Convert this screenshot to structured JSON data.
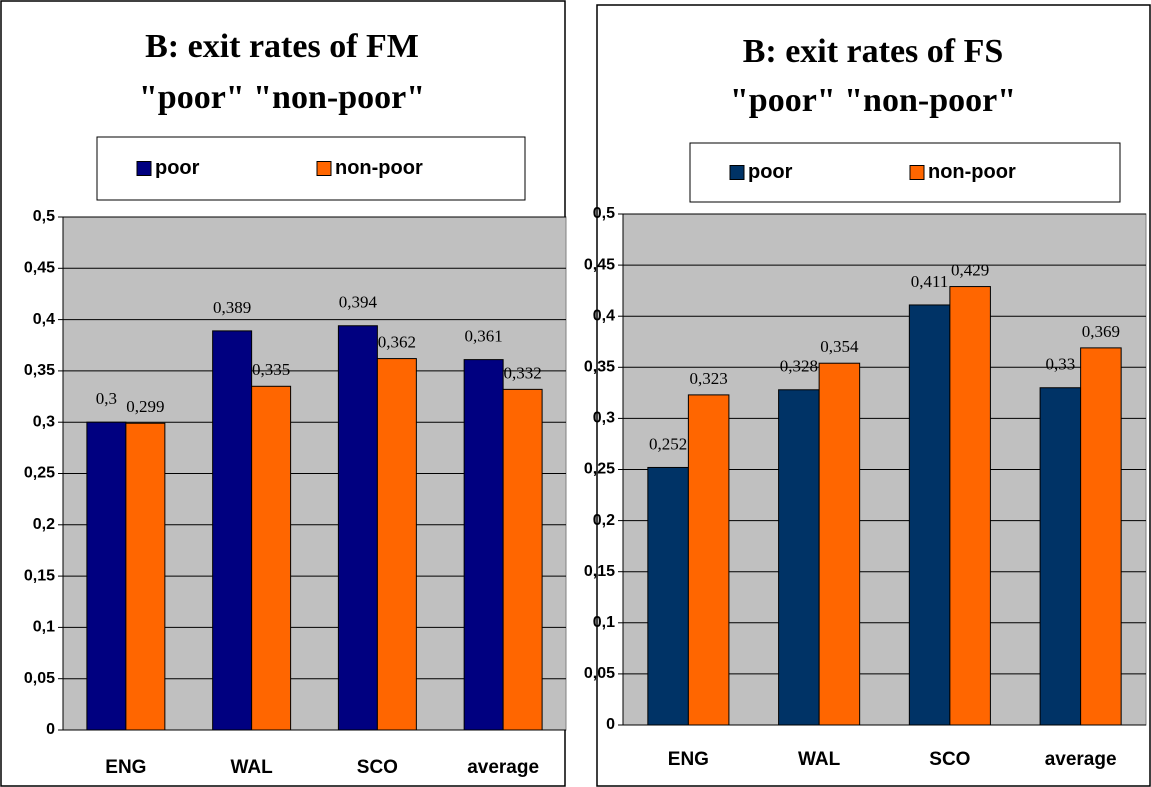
{
  "chart_data": [
    {
      "type": "bar",
      "title": "B: exit rates of FM",
      "subtitle": "\"poor\" \"non-poor\"",
      "categories": [
        "ENG",
        "WAL",
        "SCO",
        "average"
      ],
      "series": [
        {
          "name": "poor",
          "color": "#000080",
          "values": [
            0.3,
            0.389,
            0.394,
            0.361
          ],
          "value_labels": [
            "0,3",
            "0,389",
            "0,394",
            "0,361"
          ]
        },
        {
          "name": "non-poor",
          "color": "#ff6600",
          "values": [
            0.299,
            0.335,
            0.362,
            0.332
          ],
          "value_labels": [
            "0,299",
            "0,335",
            "0,362",
            "0,332"
          ]
        }
      ],
      "ylim": [
        0,
        0.5
      ],
      "yticks": [
        {
          "value": 0,
          "label": "0"
        },
        {
          "value": 0.05,
          "label": "0,05"
        },
        {
          "value": 0.1,
          "label": "0,1"
        },
        {
          "value": 0.15,
          "label": "0,15"
        },
        {
          "value": 0.2,
          "label": "0,2"
        },
        {
          "value": 0.25,
          "label": "0,25"
        },
        {
          "value": 0.3,
          "label": "0,3"
        },
        {
          "value": 0.35,
          "label": "0,35"
        },
        {
          "value": 0.4,
          "label": "0,4"
        },
        {
          "value": 0.45,
          "label": "0,45"
        },
        {
          "value": 0.5,
          "label": "0,5"
        }
      ],
      "grid": true,
      "legend": "top"
    },
    {
      "type": "bar",
      "title": "B: exit rates of FS",
      "subtitle": "\"poor\" \"non-poor\"",
      "categories": [
        "ENG",
        "WAL",
        "SCO",
        "average"
      ],
      "series": [
        {
          "name": "poor",
          "color": "#003366",
          "values": [
            0.252,
            0.328,
            0.411,
            0.33
          ],
          "value_labels": [
            "0,252",
            "0,328",
            "0,411",
            "0,33"
          ]
        },
        {
          "name": "non-poor",
          "color": "#ff6600",
          "values": [
            0.323,
            0.354,
            0.429,
            0.369
          ],
          "value_labels": [
            "0,323",
            "0,354",
            "0,429",
            "0,369"
          ]
        }
      ],
      "ylim": [
        0,
        0.5
      ],
      "yticks": [
        {
          "value": 0,
          "label": "0"
        },
        {
          "value": 0.05,
          "label": "0,05"
        },
        {
          "value": 0.1,
          "label": "0,1"
        },
        {
          "value": 0.15,
          "label": "0,15"
        },
        {
          "value": 0.2,
          "label": "0,2"
        },
        {
          "value": 0.25,
          "label": "0,25"
        },
        {
          "value": 0.3,
          "label": "0,3"
        },
        {
          "value": 0.35,
          "label": "0,35"
        },
        {
          "value": 0.4,
          "label": "0,4"
        },
        {
          "value": 0.45,
          "label": "0,45"
        },
        {
          "value": 0.5,
          "label": "0,5"
        }
      ],
      "grid": true,
      "legend": "top"
    }
  ]
}
